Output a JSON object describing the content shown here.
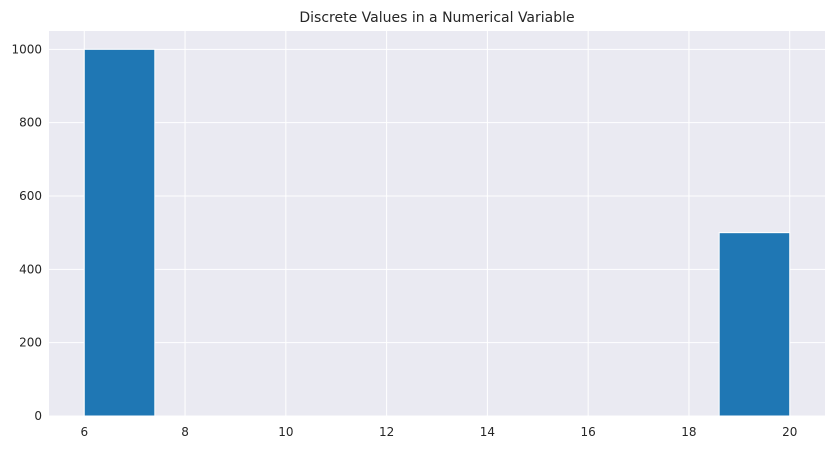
{
  "chart_data": {
    "type": "bar",
    "title": "Discrete Values in a Numerical Variable",
    "xlabel": "",
    "ylabel": "",
    "xlim": [
      5.3,
      20.7
    ],
    "ylim": [
      0,
      1050
    ],
    "xticks": [
      "6",
      "8",
      "10",
      "12",
      "14",
      "16",
      "18",
      "20"
    ],
    "yticks": [
      "0",
      "200",
      "400",
      "600",
      "800",
      "1000"
    ],
    "grid": true,
    "bins": [
      {
        "x0": 6.0,
        "x1": 7.4,
        "value": 1000
      },
      {
        "x0": 18.6,
        "x1": 20.0,
        "value": 500
      }
    ],
    "colors": {
      "bar": "#1f77b4",
      "background": "#eaeaf2",
      "grid": "#ffffff"
    }
  }
}
